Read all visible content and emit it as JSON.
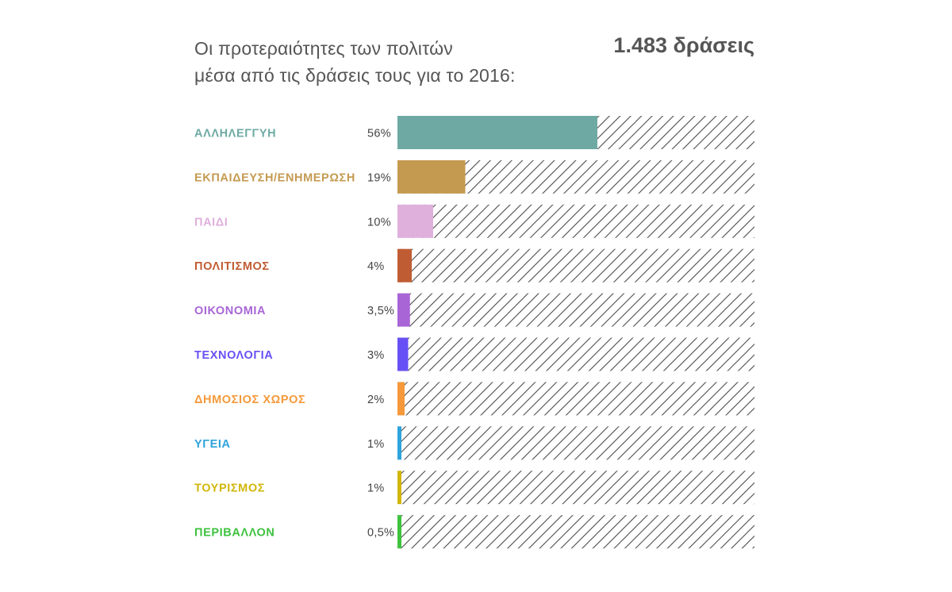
{
  "header": {
    "title_line1": "Οι προτεραιότητες των πολιτών",
    "title_line2": "μέσα από τις δράσεις τους για το 2016:",
    "total": "1.483 δράσεις"
  },
  "chart_data": {
    "type": "bar",
    "orientation": "horizontal",
    "title": "Οι προτεραιότητες των πολιτών μέσα από τις δράσεις τους για το 2016:",
    "subtitle": "1.483 δράσεις",
    "categories": [
      "ΑΛΛΗΛΕΓΓΥΗ",
      "ΕΚΠΑΙΔΕΥΣΗ/ΕΝΗΜΕΡΩΣΗ",
      "ΠΑΙΔΙ",
      "ΠΟΛΙΤΙΣΜΟΣ",
      "ΟΙΚΟΝΟΜΙΑ",
      "ΤΕΧΝΟΛΟΓΙΑ",
      "ΔΗΜΟΣΙΟΣ ΧΩΡΟΣ",
      "ΥΓΕΙΑ",
      "ΤΟΥΡΙΣΜΟΣ",
      "ΠΕΡΙΒΑΛΛΟΝ"
    ],
    "values": [
      56,
      19,
      10,
      4,
      3.5,
      3,
      2,
      1,
      1,
      0.5
    ],
    "value_labels": [
      "56%",
      "19%",
      "10%",
      "4%",
      "3,5%",
      "3%",
      "2%",
      "1%",
      "1%",
      "0,5%"
    ],
    "colors": [
      "#6eaaa3",
      "#c49a50",
      "#dfb0dc",
      "#c05c33",
      "#a865d6",
      "#6650f5",
      "#f5993b",
      "#2ea3dc",
      "#d2b60a",
      "#3ec23f"
    ],
    "xlim": [
      0,
      100
    ],
    "track_pattern": "diagonal-hatch",
    "hatch_color": "#4d4d4d",
    "grid": false,
    "legend": "none"
  }
}
